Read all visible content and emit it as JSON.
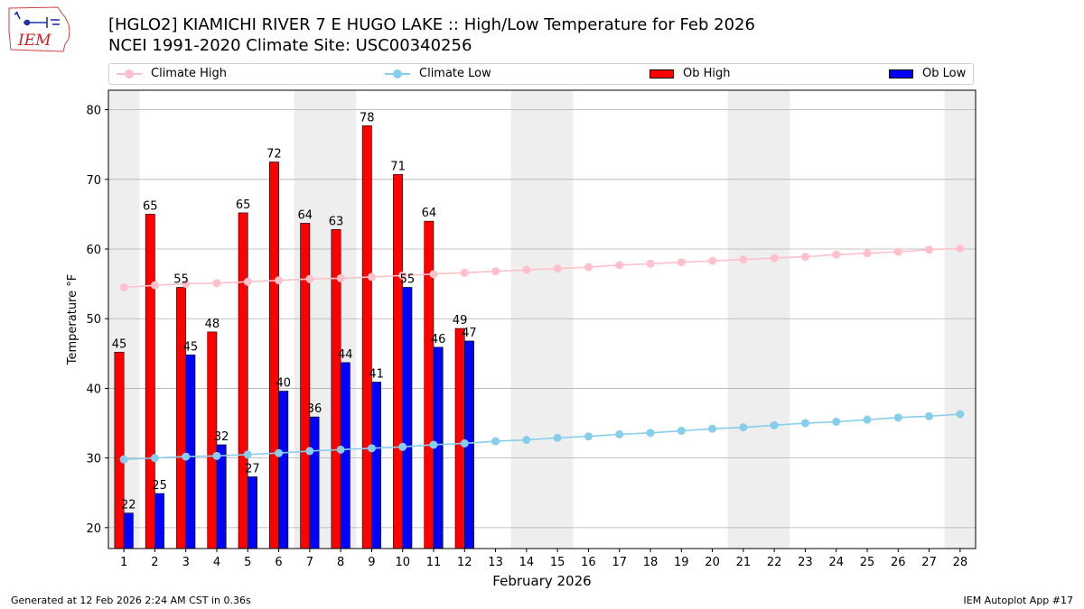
{
  "header": {
    "title": "[HGLO2] KIAMICHI RIVER 7 E HUGO LAKE :: High/Low Temperature for Feb 2026",
    "subtitle": "NCEI 1991-2020 Climate Site: USC00340256"
  },
  "logo_text": "IEM",
  "footer": {
    "generated": "Generated at 12 Feb 2026 2:24 AM CST in 0.36s",
    "app": "IEM Autoplot App #17"
  },
  "legend": {
    "climate_high": "Climate High",
    "climate_low": "Climate Low",
    "ob_high": "Ob High",
    "ob_low": "Ob Low"
  },
  "colors": {
    "ob_high": "#ff0000",
    "ob_low": "#0000ff",
    "climate_high": "#ffc0cb",
    "climate_low": "#87ceeb",
    "weekend_band": "#eeeeee",
    "grid": "#b0b0b0"
  },
  "chart_data": {
    "type": "bar",
    "xlabel": "February 2026",
    "ylabel": "Temperature °F",
    "ylim": [
      17,
      82.8
    ],
    "yticks": [
      20,
      30,
      40,
      50,
      60,
      70,
      80
    ],
    "grid": "horizontal",
    "legend_position": "top",
    "days": [
      1,
      2,
      3,
      4,
      5,
      6,
      7,
      8,
      9,
      10,
      11,
      12,
      13,
      14,
      15,
      16,
      17,
      18,
      19,
      20,
      21,
      22,
      23,
      24,
      25,
      26,
      27,
      28
    ],
    "weekend_days": [
      1,
      7,
      8,
      14,
      15,
      21,
      22,
      28
    ],
    "series": [
      {
        "name": "Ob High",
        "kind": "bar",
        "values": [
          45.2,
          65.0,
          54.5,
          48.1,
          65.2,
          72.5,
          63.7,
          62.8,
          77.7,
          70.7,
          64.0,
          48.6
        ],
        "labels": [
          "45",
          "65",
          "55",
          "48",
          "65",
          "72",
          "64",
          "63",
          "78",
          "71",
          "64",
          "49"
        ]
      },
      {
        "name": "Ob Low",
        "kind": "bar",
        "values": [
          22.1,
          24.9,
          44.8,
          31.9,
          27.3,
          39.6,
          35.9,
          43.7,
          40.9,
          54.5,
          45.9,
          46.8
        ],
        "labels": [
          "22",
          "25",
          "45",
          "32",
          "27",
          "40",
          "36",
          "44",
          "41",
          "55",
          "46",
          "47"
        ]
      },
      {
        "name": "Climate High",
        "kind": "line",
        "values": [
          54.5,
          54.8,
          55.0,
          55.1,
          55.3,
          55.5,
          55.7,
          55.8,
          56.0,
          56.2,
          56.4,
          56.6,
          56.8,
          57.0,
          57.2,
          57.4,
          57.7,
          57.9,
          58.1,
          58.3,
          58.5,
          58.7,
          58.9,
          59.2,
          59.4,
          59.6,
          59.9,
          60.1
        ]
      },
      {
        "name": "Climate Low",
        "kind": "line",
        "values": [
          29.8,
          30.0,
          30.2,
          30.3,
          30.5,
          30.7,
          31.0,
          31.2,
          31.4,
          31.6,
          31.9,
          32.1,
          32.4,
          32.6,
          32.9,
          33.1,
          33.4,
          33.6,
          33.9,
          34.2,
          34.4,
          34.7,
          35.0,
          35.2,
          35.5,
          35.8,
          36.0,
          36.3
        ]
      }
    ]
  }
}
